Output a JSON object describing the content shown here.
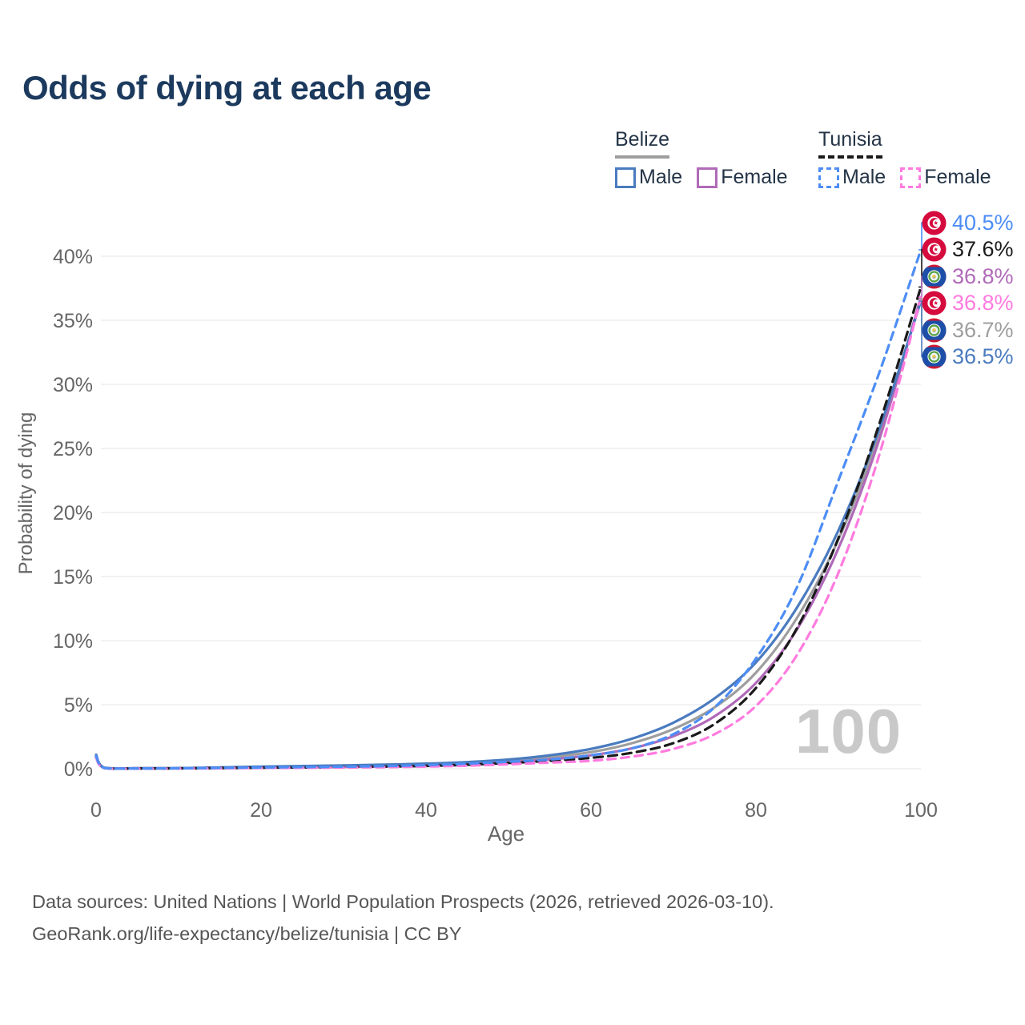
{
  "title": "Odds of dying at each age",
  "legend": {
    "groups": [
      {
        "label": "Belize",
        "line_style": "solid",
        "underline_color": "#9e9e9e",
        "items": [
          {
            "label": "Male",
            "color": "#4a7bbf",
            "line_style": "solid"
          },
          {
            "label": "Female",
            "color": "#b06ab8",
            "line_style": "solid"
          }
        ]
      },
      {
        "label": "Tunisia",
        "line_style": "dashed",
        "underline_color": "#1a1a1a",
        "items": [
          {
            "label": "Male",
            "color": "#4d8df5",
            "line_style": "dashed"
          },
          {
            "label": "Female",
            "color": "#ff7bdf",
            "line_style": "dashed"
          }
        ]
      }
    ]
  },
  "chart_data": {
    "type": "line",
    "title": "Odds of dying at each age",
    "xlabel": "Age",
    "ylabel": "Probability of dying",
    "xlim": [
      0,
      100
    ],
    "ylim_percent": [
      0,
      42
    ],
    "x_ticks": [
      0,
      20,
      40,
      60,
      80,
      100
    ],
    "y_ticks": [
      "0%",
      "5%",
      "10%",
      "15%",
      "20%",
      "25%",
      "30%",
      "35%",
      "40%"
    ],
    "grid": "horizontal",
    "legend_position": "top-right",
    "age_watermark": "100",
    "units": "probability of dying at each age, percent",
    "x": [
      0,
      1,
      5,
      10,
      15,
      20,
      25,
      30,
      35,
      40,
      45,
      50,
      55,
      60,
      65,
      70,
      75,
      80,
      85,
      90,
      95,
      100
    ],
    "series": [
      {
        "key": "bz_total",
        "name": "Belize — Both sexes",
        "country": "Belize",
        "sex": "total",
        "color": "#9e9e9e",
        "dash": "none",
        "values": [
          1.0,
          0.08,
          0.035,
          0.045,
          0.08,
          0.12,
          0.15,
          0.19,
          0.25,
          0.32,
          0.44,
          0.62,
          0.9,
          1.3,
          2.0,
          3.1,
          4.8,
          7.5,
          11.8,
          17.9,
          26.2,
          36.7
        ]
      },
      {
        "key": "bz_female",
        "name": "Belize — Female",
        "country": "Belize",
        "sex": "female",
        "color": "#b06ab8",
        "dash": "none",
        "values": [
          0.9,
          0.07,
          0.03,
          0.04,
          0.06,
          0.09,
          0.11,
          0.14,
          0.18,
          0.25,
          0.35,
          0.5,
          0.73,
          1.05,
          1.6,
          2.55,
          4.1,
          6.7,
          10.9,
          17.2,
          25.8,
          36.8
        ]
      },
      {
        "key": "bz_male",
        "name": "Belize — Male",
        "country": "Belize",
        "sex": "male",
        "color": "#4a7bbf",
        "dash": "none",
        "values": [
          1.1,
          0.09,
          0.04,
          0.05,
          0.1,
          0.16,
          0.21,
          0.26,
          0.32,
          0.4,
          0.52,
          0.72,
          1.05,
          1.55,
          2.35,
          3.6,
          5.5,
          8.3,
          12.6,
          18.6,
          26.6,
          36.5
        ]
      },
      {
        "key": "tn_total",
        "name": "Tunisia — Both sexes",
        "country": "Tunisia",
        "sex": "total",
        "color": "#1a1a1a",
        "dash": "11 7",
        "values": [
          0.93,
          0.055,
          0.022,
          0.03,
          0.055,
          0.08,
          0.1,
          0.13,
          0.17,
          0.22,
          0.31,
          0.45,
          0.62,
          0.85,
          1.25,
          2.0,
          3.5,
          6.3,
          11.0,
          18.0,
          27.0,
          37.6
        ]
      },
      {
        "key": "tn_female",
        "name": "Tunisia — Female",
        "country": "Tunisia",
        "sex": "female",
        "color": "#ff7bdf",
        "dash": "10 7",
        "values": [
          0.85,
          0.05,
          0.02,
          0.025,
          0.04,
          0.06,
          0.075,
          0.095,
          0.125,
          0.17,
          0.24,
          0.35,
          0.48,
          0.62,
          0.95,
          1.55,
          2.7,
          4.9,
          8.9,
          15.3,
          24.6,
          36.8
        ]
      },
      {
        "key": "tn_male",
        "name": "Tunisia — Male",
        "country": "Tunisia",
        "sex": "male",
        "color": "#4d8df5",
        "dash": "10 7",
        "values": [
          1.0,
          0.06,
          0.025,
          0.035,
          0.07,
          0.1,
          0.13,
          0.16,
          0.21,
          0.28,
          0.4,
          0.55,
          0.72,
          1.05,
          1.6,
          2.7,
          4.8,
          8.6,
          14.2,
          22.5,
          31.0,
          40.5
        ]
      }
    ],
    "end_labels": [
      {
        "series": "tn_male",
        "value": "40.5%",
        "flag": "tunisia",
        "color": "#4d8df5"
      },
      {
        "series": "tn_total",
        "value": "37.6%",
        "flag": "tunisia",
        "color": "#1a1a1a"
      },
      {
        "series": "bz_female",
        "value": "36.8%",
        "flag": "belize",
        "color": "#b06ab8"
      },
      {
        "series": "tn_female",
        "value": "36.8%",
        "flag": "tunisia",
        "color": "#ff7bdf"
      },
      {
        "series": "bz_total",
        "value": "36.7%",
        "flag": "belize",
        "color": "#9e9e9e"
      },
      {
        "series": "bz_male",
        "value": "36.5%",
        "flag": "belize",
        "color": "#4a7bbf"
      }
    ],
    "colors": {
      "grid": "#eaeaea",
      "axis_text": "#666666",
      "title_text": "#1c3a5e",
      "watermark": "#c9c9c9",
      "footer_text": "#555555"
    }
  },
  "footer": {
    "line1": "Data sources: United Nations | World Population Prospects (2026, retrieved 2026-03-10).",
    "line2": "GeoRank.org/life-expectancy/belize/tunisia | CC BY"
  }
}
